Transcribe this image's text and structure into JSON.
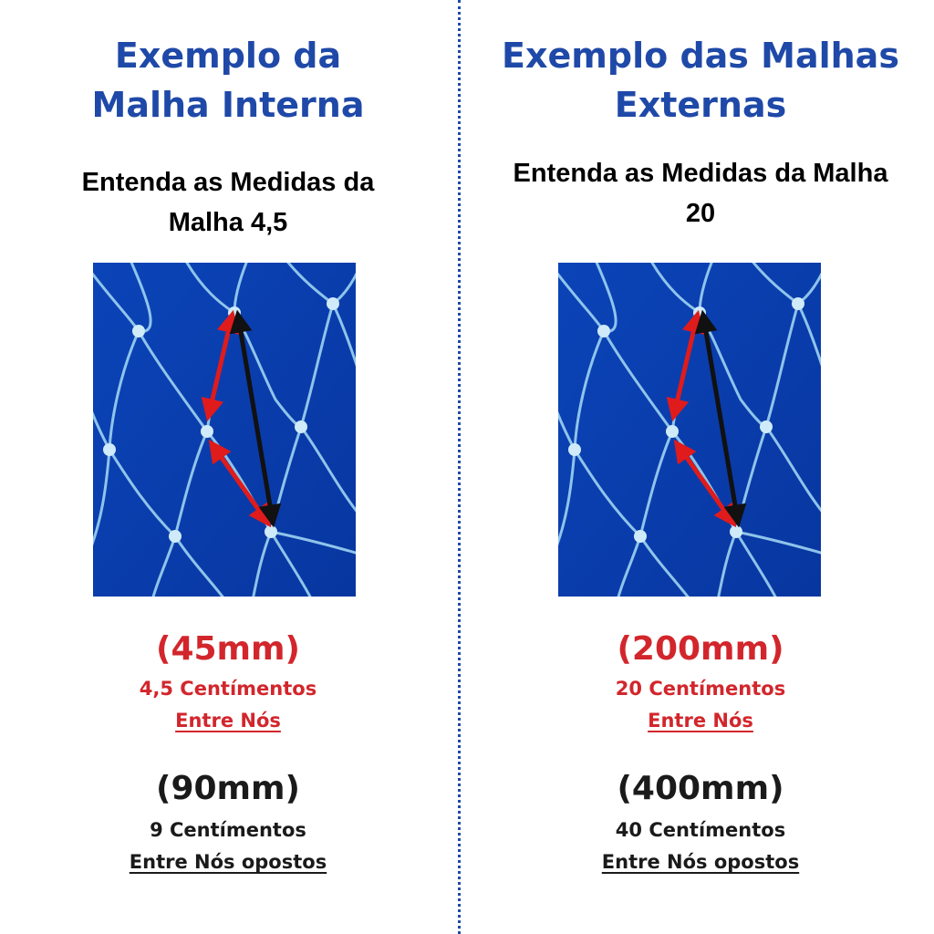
{
  "left": {
    "title": "Exemplo da Malha Interna",
    "subtitle": "Entenda as Medidas da Malha 4,5",
    "mesh_mm": "(45mm)",
    "mesh_cm": "4,5 Centímentos",
    "mesh_between": "Entre Nós",
    "opposite_mm": "(90mm)",
    "opposite_cm": "9 Centímentos",
    "opposite_between": "Entre Nós opostos"
  },
  "right": {
    "title": "Exemplo das Malhas Externas",
    "subtitle": "Entenda as Medidas da Malha 20",
    "mesh_mm": "(200mm)",
    "mesh_cm": "20 Centímentos",
    "mesh_between": "Entre Nós",
    "opposite_mm": "(400mm)",
    "opposite_cm": "40 Centímentos",
    "opposite_between": "Entre Nós opostos"
  },
  "colors": {
    "title_blue": "#1f49a8",
    "accent_red": "#d2262c",
    "net_blue": "#0a3fb0",
    "divider": "#1f49a8"
  },
  "icons": [
    "net-photo",
    "red-arrow",
    "black-arrow"
  ]
}
